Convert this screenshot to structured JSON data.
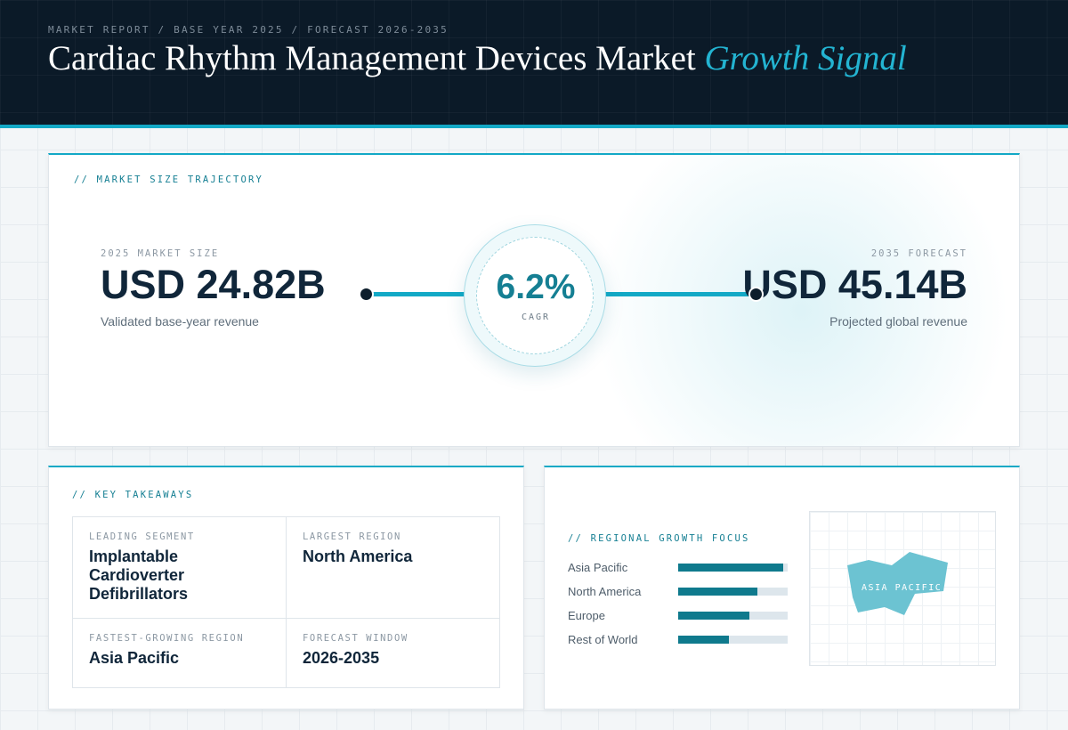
{
  "header": {
    "eyebrow": "MARKET REPORT / BASE YEAR 2025 / FORECAST 2026-2035",
    "title_main": "Cardiac Rhythm Management Devices Market",
    "title_accent": "Growth Signal",
    "accent_color": "#13a9c6"
  },
  "trajectory": {
    "section_label": "// MARKET SIZE TRAJECTORY",
    "start": {
      "label": "2025 MARKET SIZE",
      "value": "USD 24.82B",
      "caption": "Validated base-year revenue"
    },
    "end": {
      "label": "2035 FORECAST",
      "value": "USD 45.14B",
      "caption": "Projected global revenue"
    },
    "cagr": {
      "value": "6.2%",
      "label": "CAGR"
    }
  },
  "takeaways": {
    "section_label": "// KEY TAKEAWAYS",
    "items": [
      {
        "label": "LEADING SEGMENT",
        "value": "Implantable Cardioverter Defibrillators"
      },
      {
        "label": "LARGEST REGION",
        "value": "North America"
      },
      {
        "label": "FASTEST-GROWING REGION",
        "value": "Asia Pacific"
      },
      {
        "label": "FORECAST WINDOW",
        "value": "2026-2035"
      }
    ]
  },
  "regional": {
    "section_label": "// REGIONAL GROWTH FOCUS",
    "map_label": "ASIA PACIFIC",
    "bar_color": "#0f7a8d",
    "map_color": "#6cc3d2"
  },
  "chart_data": {
    "type": "bar",
    "orientation": "horizontal",
    "categories": [
      "Asia Pacific",
      "North America",
      "Europe",
      "Rest of World"
    ],
    "values": [
      0.96,
      0.72,
      0.65,
      0.46
    ],
    "value_scale": "relative fraction of track (unlabeled)",
    "xlim": [
      0,
      1
    ],
    "grid": false,
    "legend": "none"
  }
}
